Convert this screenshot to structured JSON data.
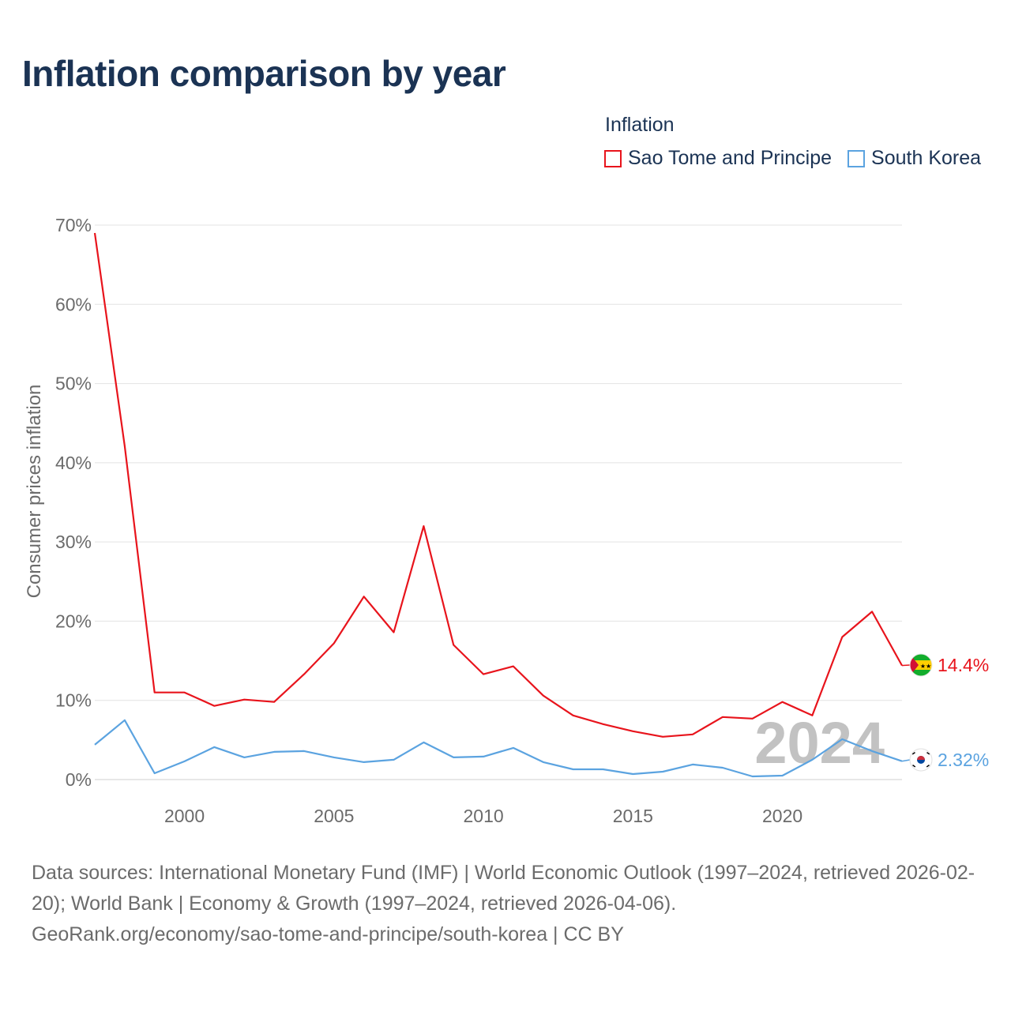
{
  "title": "Inflation comparison by year",
  "legend": {
    "title": "Inflation",
    "items": [
      {
        "label": "Sao Tome and Principe",
        "color": "#e8141c"
      },
      {
        "label": "South Korea",
        "color": "#5ba3e0"
      }
    ]
  },
  "chart_data": {
    "type": "line",
    "title": "Inflation comparison by year",
    "xlabel": "",
    "ylabel": "Consumer prices inflation",
    "xlim": [
      1997,
      2024
    ],
    "ylim": [
      0,
      70
    ],
    "x_ticks": [
      2000,
      2005,
      2010,
      2015,
      2020
    ],
    "y_ticks": [
      0,
      10,
      20,
      30,
      40,
      50,
      60,
      70
    ],
    "y_tick_labels": [
      "0%",
      "10%",
      "20%",
      "30%",
      "40%",
      "50%",
      "60%",
      "70%"
    ],
    "grid": true,
    "x": [
      1997,
      1998,
      1999,
      2000,
      2001,
      2002,
      2003,
      2004,
      2005,
      2006,
      2007,
      2008,
      2009,
      2010,
      2011,
      2012,
      2013,
      2014,
      2015,
      2016,
      2017,
      2018,
      2019,
      2020,
      2021,
      2022,
      2023,
      2024
    ],
    "series": [
      {
        "name": "Sao Tome and Principe",
        "color": "#e8141c",
        "values": [
          69.0,
          42.1,
          11.0,
          11.0,
          9.3,
          10.1,
          9.8,
          13.3,
          17.2,
          23.1,
          18.6,
          32.0,
          17.0,
          13.3,
          14.3,
          10.6,
          8.1,
          7.0,
          6.1,
          5.4,
          5.7,
          7.9,
          7.7,
          9.8,
          8.1,
          18.0,
          21.2,
          14.4
        ],
        "end_label": "14.4%"
      },
      {
        "name": "South Korea",
        "color": "#5ba3e0",
        "values": [
          4.4,
          7.5,
          0.8,
          2.3,
          4.1,
          2.8,
          3.5,
          3.6,
          2.8,
          2.2,
          2.5,
          4.7,
          2.8,
          2.9,
          4.0,
          2.2,
          1.3,
          1.3,
          0.7,
          1.0,
          1.9,
          1.5,
          0.4,
          0.5,
          2.5,
          5.1,
          3.6,
          2.32
        ],
        "end_label": "2.32%"
      }
    ],
    "year_watermark": "2024"
  },
  "footer": {
    "line1": "Data sources: International Monetary Fund (IMF) | World Economic Outlook (1997–2024, retrieved 2026-02-20); World Bank | Economy & Growth (1997–2024, retrieved 2026-04-06).",
    "line2": "GeoRank.org/economy/sao-tome-and-principe/south-korea | CC BY"
  }
}
